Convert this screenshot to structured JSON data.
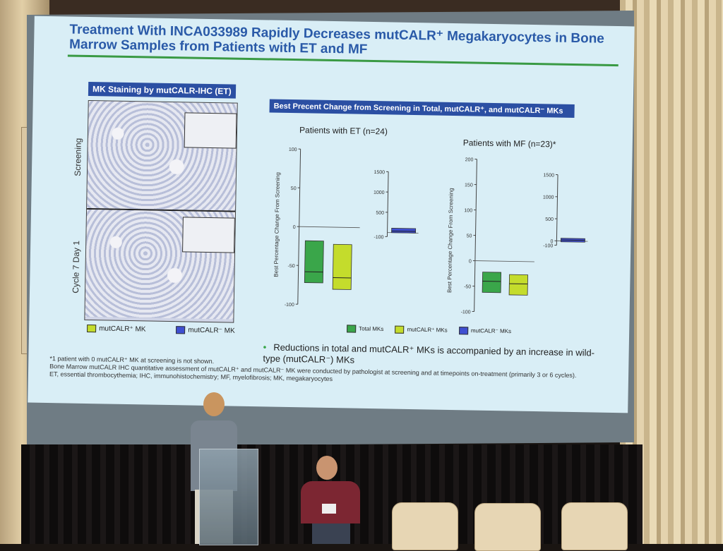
{
  "slide": {
    "title": "Treatment With INCA033989 Rapidly Decreases mutCALR⁺ Megakaryocytes in Bone Marrow Samples from Patients with ET and MF",
    "left_panel": {
      "header": "MK Staining by mutCALR-IHC (ET)",
      "row_labels": [
        "Screening",
        "Cycle 7 Day 1"
      ],
      "legend": [
        "mutCALR⁺ MK",
        "mutCALR⁻ MK"
      ]
    },
    "right_panel": {
      "header": "Best Precent Change from Screening in Total, mutCALR⁺, and mutCALR⁻ MKs",
      "et_title": "Patients with ET (n=24)",
      "mf_title": "Patients with MF (n=23)*",
      "ylabel": "Best Percentage Change From Screening",
      "legend": [
        "Total MKs",
        "mutCALR⁺ MKs",
        "mutCALR⁻ MKs"
      ]
    },
    "bullet": "Reductions in total and mutCALR⁺ MKs is accompanied by an increase in wild-type (mutCALR⁻) MKs",
    "footnotes": [
      "*1 patient with 0 mutCALR⁺ MK at screening is not shown.",
      "Bone Marrow mutCALR IHC quantitative assessment of mutCALR⁺ and mutCALR⁻ MK were conducted by pathologist at screening and at timepoints on-treatment (primarily 3 or 6 cycles).",
      "ET, essential thrombocythemia; IHC, immunohistochemistry; MF, myelofibrosis; MK, megakaryocytes"
    ]
  },
  "chart_data": [
    {
      "type": "box",
      "panel": "Patients with ET (n=24)",
      "ylim": [
        -100,
        100
      ],
      "yticks": [
        100,
        50,
        0,
        -50,
        -100
      ],
      "series": [
        {
          "name": "Total MKs",
          "q1": -72,
          "median": -58,
          "q3": -18
        },
        {
          "name": "mutCALR⁺ MKs",
          "q1": -80,
          "median": -65,
          "q3": -22
        }
      ]
    },
    {
      "type": "box",
      "panel": "Patients with ET (n=24)",
      "ylim": [
        -100,
        1500
      ],
      "yticks": [
        1500,
        1000,
        500,
        -100
      ],
      "series": [
        {
          "name": "mutCALR⁻ MKs",
          "q1": 0,
          "median": 40,
          "q3": 110
        }
      ]
    },
    {
      "type": "box",
      "panel": "Patients with MF (n=23)*",
      "ylim": [
        -100,
        200
      ],
      "yticks": [
        200,
        150,
        100,
        50,
        0,
        -50,
        -100
      ],
      "series": [
        {
          "name": "Total MKs",
          "q1": -62,
          "median": -40,
          "q3": -22
        },
        {
          "name": "mutCALR⁺ MKs",
          "q1": -66,
          "median": -44,
          "q3": -26
        }
      ]
    },
    {
      "type": "box",
      "panel": "Patients with MF (n=23)*",
      "ylim": [
        -100,
        1500
      ],
      "yticks": [
        1500,
        1000,
        500,
        0,
        -100
      ],
      "series": [
        {
          "name": "mutCALR⁻ MKs",
          "q1": -20,
          "median": 20,
          "q3": 60
        }
      ]
    }
  ],
  "colors": {
    "total": "#3aa64a",
    "mutpos": "#c4dc2c",
    "mutneg": "#3f4fd1",
    "header": "#2b4fa3",
    "title": "#2a5aa8"
  }
}
